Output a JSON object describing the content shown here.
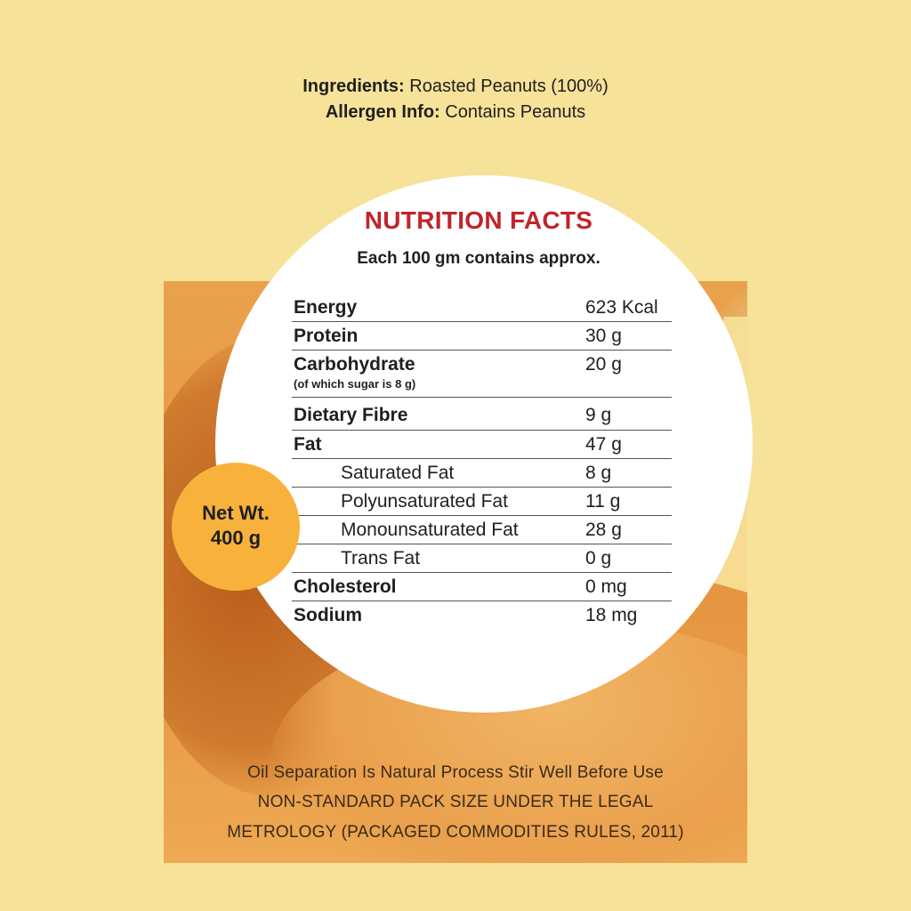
{
  "header": {
    "ingredients_label": "Ingredients:",
    "ingredients_value": " Roasted Peanuts (100%)",
    "allergen_label": "Allergen Info:",
    "allergen_value": " Contains Peanuts"
  },
  "nutrition": {
    "title": "NUTRITION FACTS",
    "subtitle": "Each 100 gm contains approx.",
    "rows": [
      {
        "name": "Energy",
        "value": "623 Kcal"
      },
      {
        "name": "Protein",
        "value": "30 g"
      },
      {
        "name": "Carbohydrate",
        "note": "(of which sugar is 8 g)",
        "value": "20 g"
      },
      {
        "name": "Dietary Fibre",
        "value": "9 g"
      },
      {
        "name": "Fat",
        "value": "47 g"
      },
      {
        "name": "Saturated Fat",
        "value": "8 g"
      },
      {
        "name": "Polyunsaturated Fat",
        "value": "11 g"
      },
      {
        "name": "Monounsaturated Fat",
        "value": "28 g"
      },
      {
        "name": "Trans Fat",
        "value": "0 g"
      },
      {
        "name": "Cholesterol",
        "value": "0 mg"
      },
      {
        "name": "Sodium",
        "value": "18 mg"
      }
    ]
  },
  "net_weight": {
    "line1": "Net Wt.",
    "line2": "400 g"
  },
  "footer": {
    "line1": "Oil Separation Is Natural Process Stir Well Before Use",
    "line2": "NON-STANDARD PACK SIZE UNDER THE LEGAL",
    "line3": "METROLOGY (PACKAGED COMMODITIES RULES, 2011)"
  },
  "colors": {
    "background": "#f7e29a",
    "title_red": "#c0252a",
    "badge_orange": "#f8b23c",
    "panel_orange": "#e5953f"
  }
}
